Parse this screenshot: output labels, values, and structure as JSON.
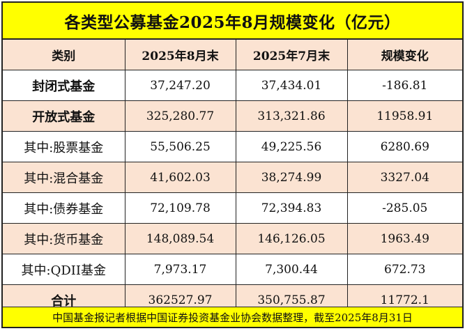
{
  "title": "各类型公募基金2025年8月规模变化（亿元）",
  "headers": [
    "类别",
    "2025年8月末",
    "2025年7月末",
    "规模变化"
  ],
  "rows": [
    {
      "category": "封闭式基金",
      "aug": "37,247.20",
      "jul": "37,434.01",
      "change": "-186.81"
    },
    {
      "category": "开放式基金",
      "aug": "325,280.77",
      "jul": "313,321.86",
      "change": "11958.91"
    },
    {
      "category": "其中:股票基金",
      "aug": "55,506.25",
      "jul": "49,225.56",
      "change": "6280.69"
    },
    {
      "category": "其中:混合基金",
      "aug": "41,602.03",
      "jul": "38,274.99",
      "change": "3327.04"
    },
    {
      "category": "其中:债券基金",
      "aug": "72,109.78",
      "jul": "72,394.83",
      "change": "-285.05"
    },
    {
      "category": "其中:货币基金",
      "aug": "148,089.54",
      "jul": "146,126.05",
      "change": "1963.49"
    },
    {
      "category": "其中:QDII基金",
      "aug": "7,973.17",
      "jul": "7,300.44",
      "change": "672.73"
    },
    {
      "category": "合计",
      "aug": "362527.97",
      "jul": "350,755.87",
      "change": "11772.1"
    }
  ],
  "footer": "中国基金报记者根据中国证券投资基金业协会数据整理，截至2025年8月31日",
  "colors": {
    "title_bg": "#ffff00",
    "footer_bg": "#ffff00",
    "shade_row": "#fbe3d2"
  }
}
